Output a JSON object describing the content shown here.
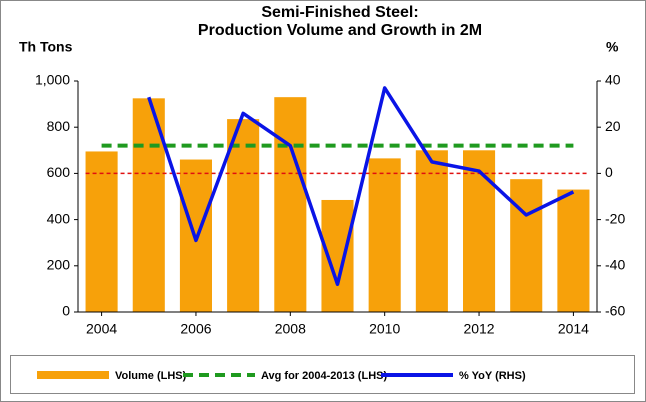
{
  "chart_data": {
    "type": "bar_line_combo",
    "title": "Semi-Finished Steel:",
    "subtitle": "Production Volume and Growth in 2M",
    "y_label": "Th Tons",
    "y2_label": "%",
    "x": [
      2004,
      2005,
      2006,
      2007,
      2008,
      2009,
      2010,
      2011,
      2012,
      2013,
      2014
    ],
    "xlim": [
      2003.5,
      2014.5
    ],
    "xticks": [
      2004,
      2006,
      2008,
      2010,
      2012,
      2014
    ],
    "ylim": [
      0,
      1000
    ],
    "yticks": [
      0,
      200,
      400,
      600,
      800,
      {
        "value": 1000,
        "label": "1,000"
      }
    ],
    "y2lim": [
      -60,
      40
    ],
    "y2ticks": [
      -60,
      -40,
      -20,
      0,
      20,
      40
    ],
    "series": [
      {
        "name": "Volume (LHS)",
        "type": "bar",
        "color": "#f7a10a",
        "values": [
          695,
          925,
          660,
          835,
          930,
          485,
          665,
          700,
          700,
          575,
          530
        ]
      },
      {
        "name": "Avg for 2004-2013 (LHS)",
        "type": "dashed-line",
        "color": "#1f9a1f",
        "values": [
          720,
          720,
          720,
          720,
          720,
          720,
          720,
          720,
          720,
          720,
          720
        ]
      },
      {
        "name": "% YoY (RHS)",
        "type": "line",
        "axis": "y2",
        "color": "#0a14e6",
        "values": [
          null,
          33,
          -29,
          26,
          12,
          -48,
          37,
          5,
          1,
          -18,
          -8
        ]
      }
    ],
    "zero_line_color": "#e01010"
  }
}
